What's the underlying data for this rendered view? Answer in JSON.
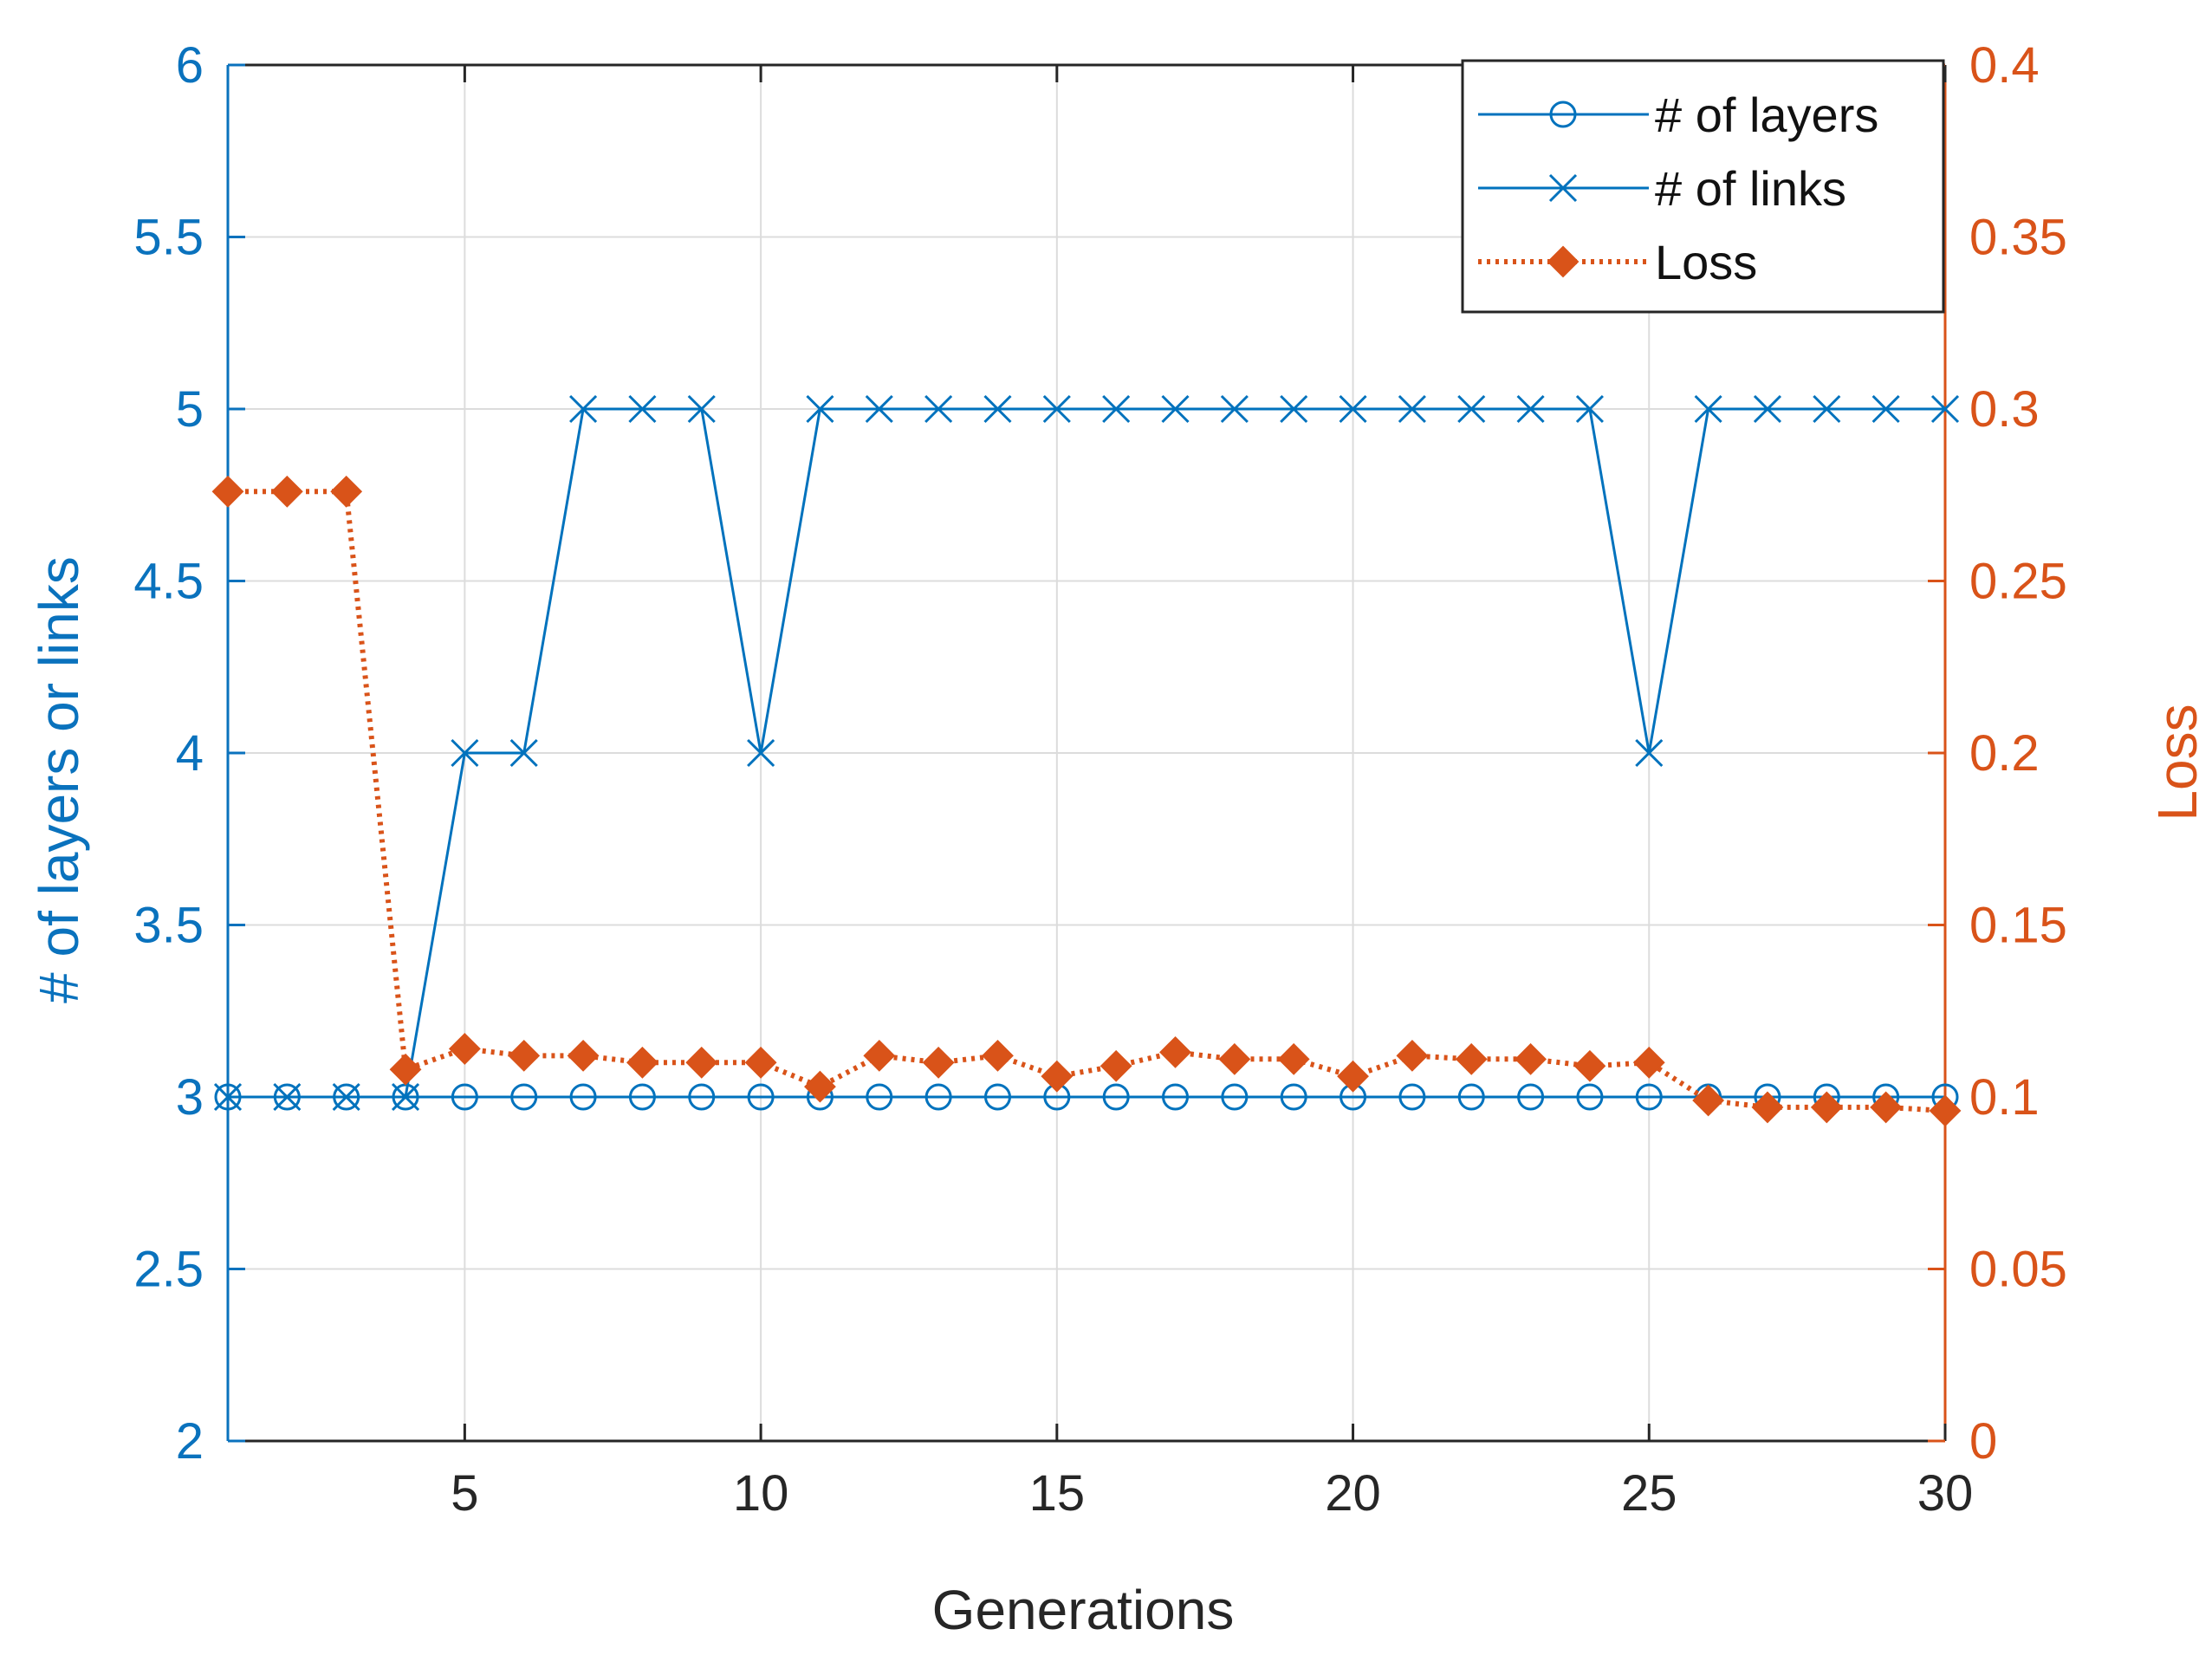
{
  "chart_data": {
    "type": "line",
    "title": "",
    "xlabel": "Generations",
    "ylabel_left": "# of layers or links",
    "ylabel_right": "Loss",
    "xlim": [
      1,
      30
    ],
    "ylim_left": [
      2,
      6
    ],
    "ylim_right": [
      0,
      0.4
    ],
    "grid": true,
    "legend_position": "top-right",
    "x_ticks": [
      5,
      10,
      15,
      20,
      25,
      30
    ],
    "x_tick_labels": [
      "5",
      "10",
      "15",
      "20",
      "25",
      "30"
    ],
    "y_left_ticks": [
      2,
      2.5,
      3,
      3.5,
      4,
      4.5,
      5,
      5.5,
      6
    ],
    "y_left_tick_labels": [
      "2",
      "2.5",
      "3",
      "3.5",
      "4",
      "4.5",
      "5",
      "5.5",
      "6"
    ],
    "y_right_ticks": [
      0,
      0.05,
      0.1,
      0.15,
      0.2,
      0.25,
      0.3,
      0.35,
      0.4
    ],
    "y_right_tick_labels": [
      "0",
      "0.05",
      "0.1",
      "0.15",
      "0.2",
      "0.25",
      "0.3",
      "0.35",
      "0.4"
    ],
    "x": [
      1,
      2,
      3,
      4,
      5,
      6,
      7,
      8,
      9,
      10,
      11,
      12,
      13,
      14,
      15,
      16,
      17,
      18,
      19,
      20,
      21,
      22,
      23,
      24,
      25,
      26,
      27,
      28,
      29,
      30
    ],
    "series": [
      {
        "name": "# of layers",
        "axis": "left",
        "color": "#0072bd",
        "marker": "circle",
        "line_style": "solid",
        "values": [
          3,
          3,
          3,
          3,
          3,
          3,
          3,
          3,
          3,
          3,
          3,
          3,
          3,
          3,
          3,
          3,
          3,
          3,
          3,
          3,
          3,
          3,
          3,
          3,
          3,
          3,
          3,
          3,
          3,
          3
        ]
      },
      {
        "name": "# of links",
        "axis": "left",
        "color": "#0072bd",
        "marker": "x",
        "line_style": "solid",
        "values": [
          3,
          3,
          3,
          3,
          4,
          4,
          5,
          5,
          5,
          4,
          5,
          5,
          5,
          5,
          5,
          5,
          5,
          5,
          5,
          5,
          5,
          5,
          5,
          5,
          4,
          5,
          5,
          5,
          5,
          5
        ]
      },
      {
        "name": "Loss",
        "axis": "right",
        "color": "#d95319",
        "marker": "diamond",
        "line_style": "dotted",
        "values": [
          0.276,
          0.276,
          0.276,
          0.108,
          0.114,
          0.112,
          0.112,
          0.11,
          0.11,
          0.11,
          0.103,
          0.112,
          0.11,
          0.112,
          0.106,
          0.109,
          0.113,
          0.111,
          0.111,
          0.106,
          0.112,
          0.111,
          0.111,
          0.109,
          0.11,
          0.099,
          0.097,
          0.097,
          0.097,
          0.096
        ]
      }
    ]
  }
}
